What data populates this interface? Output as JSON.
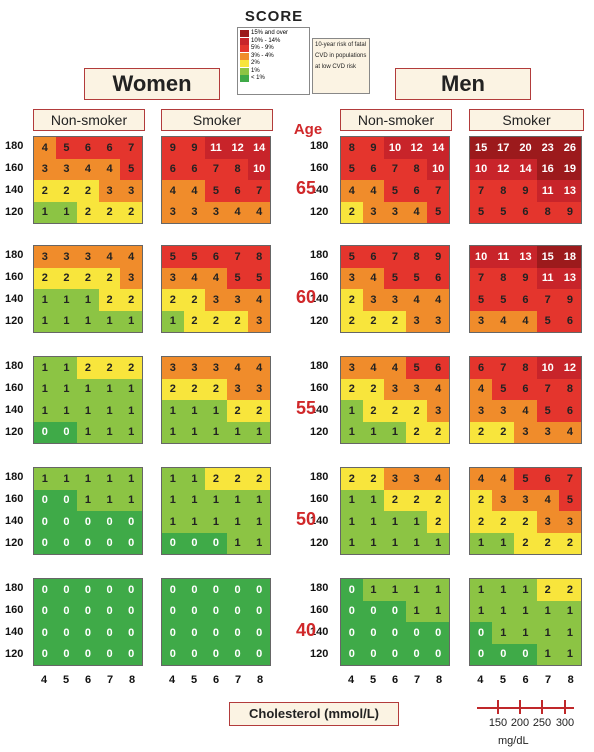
{
  "logo": {
    "text": "SCORE"
  },
  "legend": {
    "items": [
      {
        "label": "15% and over",
        "color": "#9c1a1c"
      },
      {
        "label": "10% - 14%",
        "color": "#c8242a"
      },
      {
        "label": "5% - 9%",
        "color": "#e4352d"
      },
      {
        "label": "3% - 4%",
        "color": "#f08c2b"
      },
      {
        "label": "2%",
        "color": "#f8e53c"
      },
      {
        "label": "1%",
        "color": "#8cc444"
      },
      {
        "label": "< 1%",
        "color": "#3faa48"
      }
    ],
    "note": "10-year risk of fatal CVD in populations at low CVD risk"
  },
  "headers": {
    "women": "Women",
    "men": "Men",
    "nonsmoker": "Non-smoker",
    "smoker": "Smoker",
    "age": "Age"
  },
  "cholesterol_label": "Cholesterol (mmol/L)",
  "mgdl": {
    "ticks": [
      "150",
      "200",
      "250",
      "300"
    ],
    "unit": "mg/dL"
  },
  "chart_data": {
    "type": "heatmap",
    "title": "SCORE",
    "xlabel": "Cholesterol (mmol/L)",
    "x": [
      "4",
      "5",
      "6",
      "7",
      "8"
    ],
    "sbp": [
      "180",
      "160",
      "140",
      "120"
    ],
    "ages": [
      "65",
      "60",
      "55",
      "50",
      "40"
    ],
    "groups": [
      {
        "sex": "Women",
        "smoking": "Non-smoker",
        "by_age": [
          [
            [
              4,
              5,
              6,
              6,
              7
            ],
            [
              3,
              3,
              4,
              4,
              5
            ],
            [
              2,
              2,
              2,
              3,
              3
            ],
            [
              1,
              1,
              2,
              2,
              2
            ]
          ],
          [
            [
              3,
              3,
              3,
              4,
              4
            ],
            [
              2,
              2,
              2,
              2,
              3
            ],
            [
              1,
              1,
              1,
              2,
              2
            ],
            [
              1,
              1,
              1,
              1,
              1
            ]
          ],
          [
            [
              1,
              1,
              2,
              2,
              2
            ],
            [
              1,
              1,
              1,
              1,
              1
            ],
            [
              1,
              1,
              1,
              1,
              1
            ],
            [
              0,
              0,
              1,
              1,
              1
            ]
          ],
          [
            [
              1,
              1,
              1,
              1,
              1
            ],
            [
              0,
              0,
              1,
              1,
              1
            ],
            [
              0,
              0,
              0,
              0,
              0
            ],
            [
              0,
              0,
              0,
              0,
              0
            ]
          ],
          [
            [
              0,
              0,
              0,
              0,
              0
            ],
            [
              0,
              0,
              0,
              0,
              0
            ],
            [
              0,
              0,
              0,
              0,
              0
            ],
            [
              0,
              0,
              0,
              0,
              0
            ]
          ]
        ]
      },
      {
        "sex": "Women",
        "smoking": "Smoker",
        "by_age": [
          [
            [
              9,
              9,
              11,
              12,
              14
            ],
            [
              6,
              6,
              7,
              8,
              10
            ],
            [
              4,
              4,
              5,
              6,
              7
            ],
            [
              3,
              3,
              3,
              4,
              4
            ]
          ],
          [
            [
              5,
              5,
              6,
              7,
              8
            ],
            [
              3,
              4,
              4,
              5,
              5
            ],
            [
              2,
              2,
              3,
              3,
              4
            ],
            [
              1,
              2,
              2,
              2,
              3
            ]
          ],
          [
            [
              3,
              3,
              3,
              4,
              4
            ],
            [
              2,
              2,
              2,
              3,
              3
            ],
            [
              1,
              1,
              1,
              2,
              2
            ],
            [
              1,
              1,
              1,
              1,
              1
            ]
          ],
          [
            [
              1,
              1,
              2,
              2,
              2
            ],
            [
              1,
              1,
              1,
              1,
              1
            ],
            [
              1,
              1,
              1,
              1,
              1
            ],
            [
              0,
              0,
              0,
              1,
              1
            ]
          ],
          [
            [
              0,
              0,
              0,
              0,
              0
            ],
            [
              0,
              0,
              0,
              0,
              0
            ],
            [
              0,
              0,
              0,
              0,
              0
            ],
            [
              0,
              0,
              0,
              0,
              0
            ]
          ]
        ]
      },
      {
        "sex": "Men",
        "smoking": "Non-smoker",
        "by_age": [
          [
            [
              8,
              9,
              10,
              12,
              14
            ],
            [
              5,
              6,
              7,
              8,
              10
            ],
            [
              4,
              4,
              5,
              6,
              7
            ],
            [
              2,
              3,
              3,
              4,
              5
            ]
          ],
          [
            [
              5,
              6,
              7,
              8,
              9
            ],
            [
              3,
              4,
              5,
              5,
              6
            ],
            [
              2,
              3,
              3,
              4,
              4
            ],
            [
              2,
              2,
              2,
              3,
              3
            ]
          ],
          [
            [
              3,
              4,
              4,
              5,
              6
            ],
            [
              2,
              2,
              3,
              3,
              4
            ],
            [
              1,
              2,
              2,
              2,
              3
            ],
            [
              1,
              1,
              1,
              2,
              2
            ]
          ],
          [
            [
              2,
              2,
              3,
              3,
              4
            ],
            [
              1,
              1,
              2,
              2,
              2
            ],
            [
              1,
              1,
              1,
              1,
              2
            ],
            [
              1,
              1,
              1,
              1,
              1
            ]
          ],
          [
            [
              0,
              1,
              1,
              1,
              1
            ],
            [
              0,
              0,
              0,
              1,
              1
            ],
            [
              0,
              0,
              0,
              0,
              0
            ],
            [
              0,
              0,
              0,
              0,
              0
            ]
          ]
        ]
      },
      {
        "sex": "Men",
        "smoking": "Smoker",
        "by_age": [
          [
            [
              15,
              17,
              20,
              23,
              26
            ],
            [
              10,
              12,
              14,
              16,
              19
            ],
            [
              7,
              8,
              9,
              11,
              13
            ],
            [
              5,
              5,
              6,
              8,
              9
            ]
          ],
          [
            [
              10,
              11,
              13,
              15,
              18
            ],
            [
              7,
              8,
              9,
              11,
              13
            ],
            [
              5,
              5,
              6,
              7,
              9
            ],
            [
              3,
              4,
              4,
              5,
              6
            ]
          ],
          [
            [
              6,
              7,
              8,
              10,
              12
            ],
            [
              4,
              5,
              6,
              7,
              8
            ],
            [
              3,
              3,
              4,
              5,
              6
            ],
            [
              2,
              2,
              3,
              3,
              4
            ]
          ],
          [
            [
              4,
              4,
              5,
              6,
              7
            ],
            [
              2,
              3,
              3,
              4,
              5
            ],
            [
              2,
              2,
              2,
              3,
              3
            ],
            [
              1,
              1,
              2,
              2,
              2
            ]
          ],
          [
            [
              1,
              1,
              1,
              2,
              2
            ],
            [
              1,
              1,
              1,
              1,
              1
            ],
            [
              0,
              1,
              1,
              1,
              1
            ],
            [
              0,
              0,
              0,
              1,
              1
            ]
          ]
        ]
      }
    ]
  }
}
